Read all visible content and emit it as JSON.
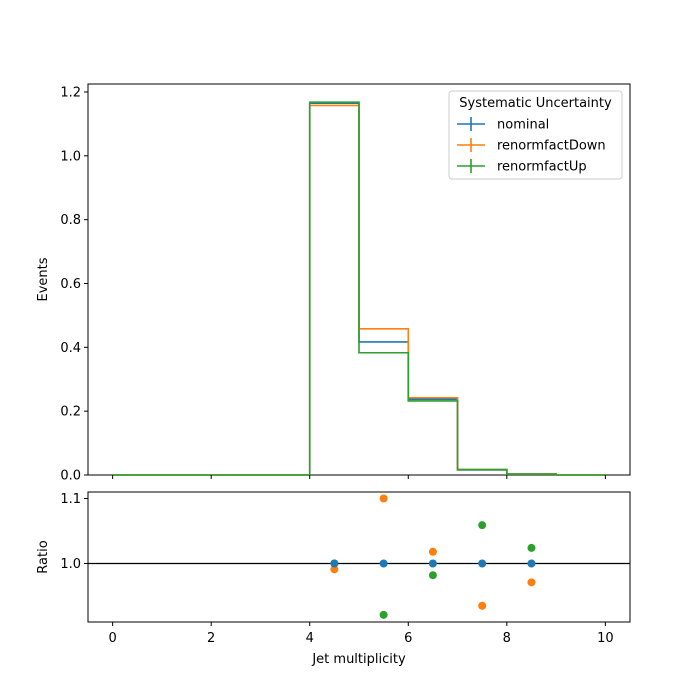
{
  "chart_data": [
    {
      "type": "step-histogram",
      "xlabel": "",
      "ylabel": "Events",
      "xlim": [
        -0.5,
        10.5
      ],
      "ylim": [
        0,
        1.225
      ],
      "xticks": [
        0,
        2,
        4,
        6,
        8,
        10
      ],
      "yticks": [
        0.0,
        0.2,
        0.4,
        0.6,
        0.8,
        1.0,
        1.2
      ],
      "ytick_labels": [
        "0.0",
        "0.2",
        "0.4",
        "0.6",
        "0.8",
        "1.0",
        "1.2"
      ],
      "bin_edges": [
        0,
        1,
        2,
        3,
        4,
        5,
        6,
        7,
        8,
        9,
        10
      ],
      "series": [
        {
          "name": "nominal",
          "color": "#1f77b4",
          "values": [
            0,
            0,
            0,
            0,
            1.165,
            0.417,
            0.237,
            0.016,
            0.003,
            0
          ]
        },
        {
          "name": "renormfactDown",
          "color": "#ff7f0e",
          "values": [
            0,
            0,
            0,
            0,
            1.158,
            0.458,
            0.242,
            0.017,
            0.003,
            0
          ]
        },
        {
          "name": "renormfactUp",
          "color": "#2ca02c",
          "values": [
            0,
            0,
            0,
            0,
            1.168,
            0.383,
            0.232,
            0.017,
            0.003,
            0
          ]
        }
      ],
      "legend": {
        "title": "Systematic Uncertainty",
        "location": "top-right"
      }
    },
    {
      "type": "scatter",
      "xlabel": "Jet multiplicity",
      "ylabel": "Ratio",
      "xlim": [
        -0.5,
        10.5
      ],
      "ylim": [
        0.91,
        1.11
      ],
      "xticks": [
        0,
        2,
        4,
        6,
        8,
        10
      ],
      "xtick_labels": [
        "0",
        "2",
        "4",
        "6",
        "8",
        "10"
      ],
      "yticks": [
        1.0,
        1.1
      ],
      "ytick_labels": [
        "1.0",
        "1.1"
      ],
      "reference_line": 1.0,
      "series": [
        {
          "name": "nominal",
          "color": "#1f77b4",
          "x": [
            4.5,
            5.5,
            6.5,
            7.5,
            8.5
          ],
          "y": [
            1.0,
            1.0,
            1.0,
            1.0,
            1.0
          ]
        },
        {
          "name": "renormfactDown",
          "color": "#ff7f0e",
          "x": [
            4.5,
            5.5,
            6.5,
            7.5,
            8.5
          ],
          "y": [
            0.991,
            1.1,
            1.018,
            0.935,
            0.971
          ]
        },
        {
          "name": "renormfactUp",
          "color": "#2ca02c",
          "x": [
            4.5,
            5.5,
            6.5,
            7.5,
            8.5
          ],
          "y": [
            1.0,
            0.921,
            0.982,
            1.059,
            1.024
          ]
        }
      ]
    }
  ]
}
